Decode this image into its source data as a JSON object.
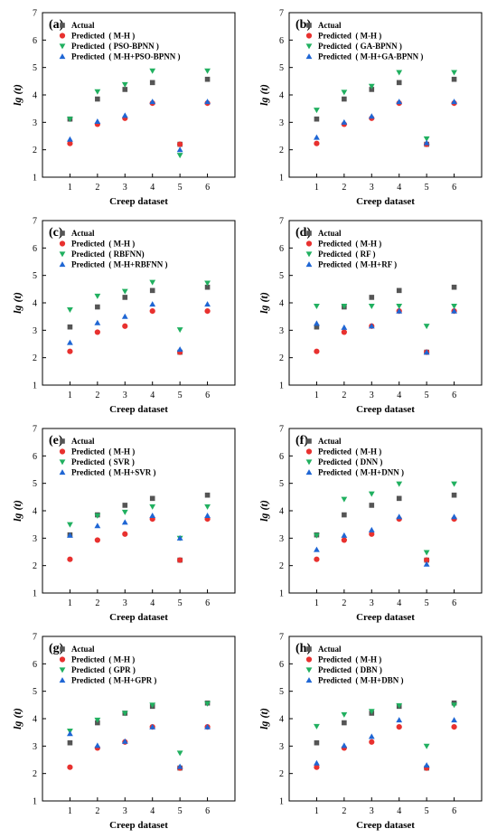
{
  "figure": {
    "background": "#ffffff"
  },
  "colors": {
    "Actual": "#555555",
    "MH": "#e8312f",
    "Model": "#21b060",
    "Hybrid": "#1f66d4"
  },
  "chart_data": [
    {
      "type": "scatter",
      "panel_label": "(a)",
      "xlabel": "Creep dataset",
      "ylabel": "lg (t)",
      "x": [
        1,
        2,
        3,
        4,
        5,
        6
      ],
      "xlim": [
        0,
        7
      ],
      "ylim": [
        1,
        7
      ],
      "xticks": [
        "1",
        "2",
        "3",
        "4",
        "5",
        "6"
      ],
      "yticks": [
        "1",
        "2",
        "3",
        "4",
        "5",
        "6",
        "7"
      ],
      "legend_position": "top-left",
      "series": [
        {
          "name": "Actual",
          "marker": "square",
          "values": [
            3.12,
            3.85,
            4.2,
            4.45,
            2.2,
            4.57
          ]
        },
        {
          "name": "Predicted  ( M-H )",
          "marker": "circle",
          "values": [
            2.23,
            2.93,
            3.15,
            3.7,
            2.2,
            3.7
          ]
        },
        {
          "name": "Predicted  ( PSO-BPNN )",
          "marker": "triangle-down",
          "values": [
            3.12,
            4.12,
            4.38,
            4.88,
            1.8,
            4.88
          ]
        },
        {
          "name": "Predicted  ( M-H+PSO-BPNN )",
          "marker": "triangle-up",
          "values": [
            2.38,
            3.03,
            3.25,
            3.75,
            2.0,
            3.75
          ]
        }
      ]
    },
    {
      "type": "scatter",
      "panel_label": "(b)",
      "xlabel": "Creep dataset",
      "ylabel": "lg (t)",
      "x": [
        1,
        2,
        3,
        4,
        5,
        6
      ],
      "xlim": [
        0,
        7
      ],
      "ylim": [
        1,
        7
      ],
      "xticks": [
        "1",
        "2",
        "3",
        "4",
        "5",
        "6"
      ],
      "yticks": [
        "1",
        "2",
        "3",
        "4",
        "5",
        "6",
        "7"
      ],
      "legend_position": "top-left",
      "series": [
        {
          "name": "Actual",
          "marker": "square",
          "values": [
            3.12,
            3.85,
            4.2,
            4.45,
            2.2,
            4.57
          ]
        },
        {
          "name": "Predicted  ( M-H )",
          "marker": "circle",
          "values": [
            2.23,
            2.93,
            3.15,
            3.7,
            2.2,
            3.7
          ]
        },
        {
          "name": "Predicted  ( GA-BPNN )",
          "marker": "triangle-down",
          "values": [
            3.45,
            4.1,
            4.32,
            4.82,
            2.4,
            4.82
          ]
        },
        {
          "name": "Predicted  ( M-H+GA-BPNN )",
          "marker": "triangle-up",
          "values": [
            2.45,
            3.0,
            3.22,
            3.75,
            2.25,
            3.75
          ]
        }
      ]
    },
    {
      "type": "scatter",
      "panel_label": "(c)",
      "xlabel": "Creep dataset",
      "ylabel": "lg (t)",
      "x": [
        1,
        2,
        3,
        4,
        5,
        6
      ],
      "xlim": [
        0,
        7
      ],
      "ylim": [
        1,
        7
      ],
      "xticks": [
        "1",
        "2",
        "3",
        "4",
        "5",
        "6"
      ],
      "yticks": [
        "1",
        "2",
        "3",
        "4",
        "5",
        "6",
        "7"
      ],
      "legend_position": "top-left",
      "series": [
        {
          "name": "Actual",
          "marker": "square",
          "values": [
            3.12,
            3.85,
            4.2,
            4.45,
            2.2,
            4.57
          ]
        },
        {
          "name": "Predicted  ( M-H )",
          "marker": "circle",
          "values": [
            2.23,
            2.93,
            3.15,
            3.7,
            2.2,
            3.7
          ]
        },
        {
          "name": "Predicted  ( RBFNN)",
          "marker": "triangle-down",
          "values": [
            3.75,
            4.25,
            4.42,
            4.75,
            3.02,
            4.72
          ]
        },
        {
          "name": "Predicted  ( M-H+RBFNN )",
          "marker": "triangle-up",
          "values": [
            2.55,
            3.27,
            3.5,
            3.95,
            2.3,
            3.95
          ]
        }
      ]
    },
    {
      "type": "scatter",
      "panel_label": "(d)",
      "xlabel": "Creep dataset",
      "ylabel": "lg (t)",
      "x": [
        1,
        2,
        3,
        4,
        5,
        6
      ],
      "xlim": [
        0,
        7
      ],
      "ylim": [
        1,
        7
      ],
      "xticks": [
        "1",
        "2",
        "3",
        "4",
        "5",
        "6"
      ],
      "yticks": [
        "1",
        "2",
        "3",
        "4",
        "5",
        "6",
        "7"
      ],
      "legend_position": "top-left",
      "series": [
        {
          "name": "Actual",
          "marker": "square",
          "values": [
            3.12,
            3.85,
            4.2,
            4.45,
            2.2,
            4.57
          ]
        },
        {
          "name": "Predicted  ( M-H )",
          "marker": "circle",
          "values": [
            2.23,
            2.93,
            3.15,
            3.7,
            2.2,
            3.7
          ]
        },
        {
          "name": "Predicted  ( RF )",
          "marker": "triangle-down",
          "values": [
            3.88,
            3.88,
            3.88,
            3.88,
            3.15,
            3.88
          ]
        },
        {
          "name": "Predicted  ( M-H+RF )",
          "marker": "triangle-up",
          "values": [
            3.25,
            3.1,
            3.15,
            3.7,
            2.2,
            3.7
          ]
        }
      ]
    },
    {
      "type": "scatter",
      "panel_label": "(e)",
      "xlabel": "Creep dataset",
      "ylabel": "lg (t)",
      "x": [
        1,
        2,
        3,
        4,
        5,
        6
      ],
      "xlim": [
        0,
        7
      ],
      "ylim": [
        1,
        7
      ],
      "xticks": [
        "1",
        "2",
        "3",
        "4",
        "5",
        "6"
      ],
      "yticks": [
        "1",
        "2",
        "3",
        "4",
        "5",
        "6",
        "7"
      ],
      "legend_position": "top-left",
      "series": [
        {
          "name": "Actual",
          "marker": "square",
          "values": [
            3.12,
            3.85,
            4.2,
            4.45,
            2.2,
            4.57
          ]
        },
        {
          "name": "Predicted  ( M-H )",
          "marker": "circle",
          "values": [
            2.23,
            2.93,
            3.15,
            3.7,
            2.2,
            3.7
          ]
        },
        {
          "name": "Predicted  ( SVR )",
          "marker": "triangle-down",
          "values": [
            3.5,
            3.82,
            3.95,
            4.15,
            3.0,
            4.15
          ]
        },
        {
          "name": "Predicted  ( M-H+SVR )",
          "marker": "triangle-up",
          "values": [
            3.1,
            3.45,
            3.58,
            3.82,
            3.0,
            3.82
          ]
        }
      ]
    },
    {
      "type": "scatter",
      "panel_label": "(f)",
      "xlabel": "Creep dataset",
      "ylabel": "lg (t)",
      "x": [
        1,
        2,
        3,
        4,
        5,
        6
      ],
      "xlim": [
        0,
        7
      ],
      "ylim": [
        1,
        7
      ],
      "xticks": [
        "1",
        "2",
        "3",
        "4",
        "5",
        "6"
      ],
      "yticks": [
        "1",
        "2",
        "3",
        "4",
        "5",
        "6",
        "7"
      ],
      "legend_position": "top-left",
      "series": [
        {
          "name": "Actual",
          "marker": "square",
          "values": [
            3.12,
            3.85,
            4.2,
            4.45,
            2.2,
            4.57
          ]
        },
        {
          "name": "Predicted  ( M-H )",
          "marker": "circle",
          "values": [
            2.23,
            2.93,
            3.15,
            3.7,
            2.2,
            3.7
          ]
        },
        {
          "name": "Predicted  ( DNN )",
          "marker": "triangle-down",
          "values": [
            3.1,
            4.42,
            4.62,
            4.98,
            2.48,
            4.98
          ]
        },
        {
          "name": "Predicted  ( M-H+DNN )",
          "marker": "triangle-up",
          "values": [
            2.58,
            3.1,
            3.3,
            3.78,
            2.05,
            3.78
          ]
        }
      ]
    },
    {
      "type": "scatter",
      "panel_label": "(g)",
      "xlabel": "Creep dataset",
      "ylabel": "lg (t)",
      "x": [
        1,
        2,
        3,
        4,
        5,
        6
      ],
      "xlim": [
        0,
        7
      ],
      "ylim": [
        1,
        7
      ],
      "xticks": [
        "1",
        "2",
        "3",
        "4",
        "5",
        "6"
      ],
      "yticks": [
        "1",
        "2",
        "3",
        "4",
        "5",
        "6",
        "7"
      ],
      "legend_position": "top-left",
      "series": [
        {
          "name": "Actual",
          "marker": "square",
          "values": [
            3.12,
            3.85,
            4.2,
            4.45,
            2.2,
            4.57
          ]
        },
        {
          "name": "Predicted  ( M-H )",
          "marker": "circle",
          "values": [
            2.23,
            2.93,
            3.15,
            3.7,
            2.2,
            3.7
          ]
        },
        {
          "name": "Predicted  ( GPR )",
          "marker": "triangle-down",
          "values": [
            3.55,
            3.95,
            4.2,
            4.5,
            2.75,
            4.55
          ]
        },
        {
          "name": "Predicted  ( M-H+GPR )",
          "marker": "triangle-up",
          "values": [
            3.45,
            3.02,
            3.17,
            3.7,
            2.25,
            3.7
          ]
        }
      ]
    },
    {
      "type": "scatter",
      "panel_label": "(h)",
      "xlabel": "Creep dataset",
      "ylabel": "lg (t)",
      "x": [
        1,
        2,
        3,
        4,
        5,
        6
      ],
      "xlim": [
        0,
        7
      ],
      "ylim": [
        1,
        7
      ],
      "xticks": [
        "1",
        "2",
        "3",
        "4",
        "5",
        "6"
      ],
      "yticks": [
        "1",
        "2",
        "3",
        "4",
        "5",
        "6",
        "7"
      ],
      "legend_position": "top-left",
      "series": [
        {
          "name": "Actual",
          "marker": "square",
          "values": [
            3.12,
            3.85,
            4.2,
            4.45,
            2.2,
            4.57
          ]
        },
        {
          "name": "Predicted  ( M-H )",
          "marker": "circle",
          "values": [
            2.23,
            2.93,
            3.15,
            3.7,
            2.2,
            3.7
          ]
        },
        {
          "name": "Predicted  ( DBN )",
          "marker": "triangle-down",
          "values": [
            3.72,
            4.15,
            4.27,
            4.48,
            3.0,
            4.5
          ]
        },
        {
          "name": "Predicted  ( M-H+DBN )",
          "marker": "triangle-up",
          "values": [
            2.38,
            3.02,
            3.35,
            3.95,
            2.3,
            3.95
          ]
        }
      ]
    }
  ]
}
